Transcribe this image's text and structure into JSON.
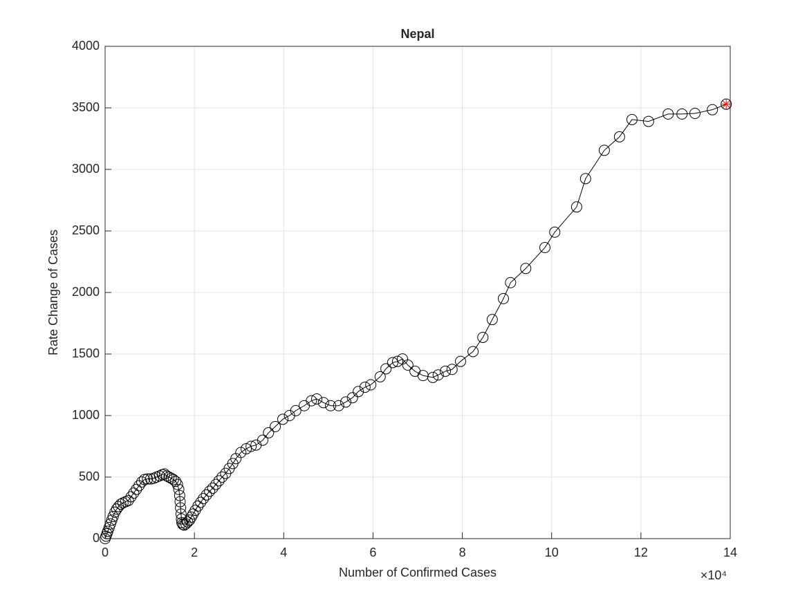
{
  "chart_data": {
    "type": "line-scatter",
    "title": "Nepal",
    "xlabel": "Number of Confirmed Cases",
    "ylabel": "Rate Change of Cases",
    "x_multiplier": "×10⁴",
    "xlim": [
      0,
      140000
    ],
    "ylim": [
      0,
      4000
    ],
    "xticks": [
      {
        "value": 0,
        "label": "0"
      },
      {
        "value": 20000,
        "label": "2"
      },
      {
        "value": 40000,
        "label": "4"
      },
      {
        "value": 60000,
        "label": "6"
      },
      {
        "value": 80000,
        "label": "8"
      },
      {
        "value": 100000,
        "label": "10"
      },
      {
        "value": 120000,
        "label": "12"
      },
      {
        "value": 140000,
        "label": "14"
      }
    ],
    "yticks": [
      0,
      500,
      1000,
      1500,
      2000,
      2500,
      3000,
      3500,
      4000
    ],
    "grid": true,
    "color": "#000000",
    "highlight_color": "#ff0000",
    "x": [
      0,
      200,
      400,
      600,
      900,
      1200,
      1500,
      1800,
      2200,
      2600,
      3000,
      3500,
      4000,
      4600,
      5200,
      5800,
      6400,
      7000,
      7600,
      8200,
      8800,
      9500,
      10200,
      10900,
      11500,
      12200,
      12800,
      13300,
      13800,
      14300,
      14800,
      15300,
      15800,
      16200,
      16500,
      16700,
      16800,
      16900,
      17000,
      17100,
      17200,
      17400,
      17700,
      18100,
      18500,
      18900,
      19300,
      19700,
      20200,
      20800,
      21400,
      22000,
      22700,
      23400,
      24100,
      24800,
      25500,
      26200,
      27000,
      27800,
      28600,
      29300,
      30400,
      31600,
      32700,
      33800,
      35300,
      36600,
      38100,
      39800,
      41300,
      42700,
      44600,
      46200,
      47400,
      48900,
      50500,
      52300,
      53900,
      55400,
      56700,
      58200,
      59500,
      61600,
      62900,
      64400,
      65500,
      66600,
      67800,
      69400,
      71200,
      73400,
      74600,
      76200,
      77700,
      79600,
      82400,
      84600,
      86700,
      89200,
      90800,
      94200,
      98500,
      100700,
      105600,
      107600,
      111800,
      115200,
      118000,
      121700,
      126100,
      129200,
      132100,
      136000,
      139100
    ],
    "y": [
      0,
      20,
      40,
      60,
      90,
      120,
      150,
      180,
      215,
      240,
      260,
      280,
      290,
      300,
      310,
      340,
      370,
      400,
      430,
      460,
      480,
      485,
      485,
      490,
      500,
      510,
      520,
      525,
      510,
      500,
      490,
      480,
      465,
      440,
      400,
      350,
      300,
      250,
      200,
      160,
      130,
      115,
      110,
      120,
      135,
      150,
      175,
      200,
      230,
      265,
      295,
      325,
      355,
      385,
      410,
      440,
      470,
      500,
      530,
      570,
      610,
      650,
      700,
      730,
      750,
      760,
      800,
      860,
      910,
      970,
      1000,
      1040,
      1080,
      1120,
      1135,
      1105,
      1080,
      1080,
      1110,
      1145,
      1195,
      1230,
      1250,
      1315,
      1380,
      1430,
      1440,
      1460,
      1410,
      1360,
      1325,
      1310,
      1330,
      1360,
      1375,
      1440,
      1520,
      1635,
      1780,
      1950,
      2080,
      2195,
      2365,
      2490,
      2695,
      2925,
      3155,
      3265,
      3405,
      3390,
      3450,
      3450,
      3455,
      3485,
      3530
    ],
    "highlight_index": 114
  }
}
